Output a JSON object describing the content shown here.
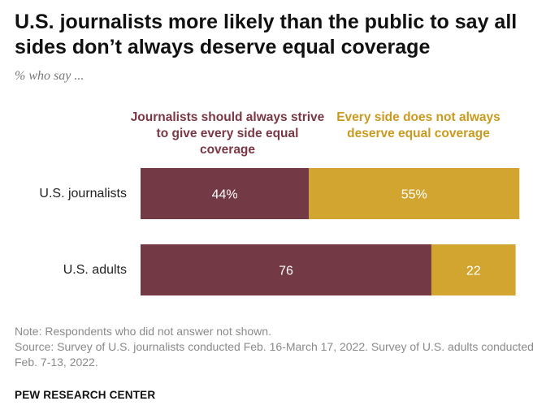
{
  "title": "U.S. journalists more likely than the public to say all sides don’t always deserve equal coverage",
  "subtitle": "% who say ...",
  "legend": {
    "series_a": "Journalists should always strive to give every side equal coverage",
    "series_b": "Every side does not always deserve equal coverage"
  },
  "colors": {
    "series_a": "#733a45",
    "series_b": "#d1a530",
    "bar_text": "#ffffff"
  },
  "chart_data": {
    "type": "bar",
    "orientation": "horizontal",
    "stacked": true,
    "categories": [
      "U.S. journalists",
      "U.S. adults"
    ],
    "series": [
      {
        "name": "Journalists should always strive to give every side equal coverage",
        "values": [
          44,
          76
        ],
        "labels": [
          "44%",
          "76"
        ]
      },
      {
        "name": "Every side does not always deserve equal coverage",
        "values": [
          55,
          22
        ],
        "labels": [
          "55%",
          "22"
        ]
      }
    ],
    "xlim": [
      0,
      100
    ],
    "grid": false,
    "legend_position": "top"
  },
  "notes": {
    "note": "Note: Respondents who did not answer not shown.",
    "source": "Source: Survey of U.S. journalists conducted Feb. 16-March 17, 2022. Survey of U.S. adults conducted Feb. 7-13, 2022."
  },
  "footer": "PEW RESEARCH CENTER"
}
